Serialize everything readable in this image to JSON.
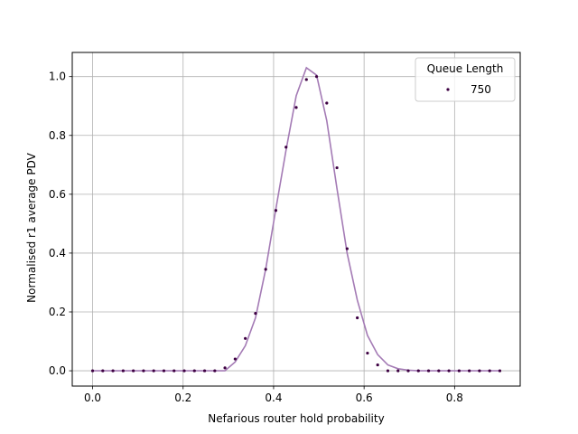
{
  "chart_data": {
    "type": "scatter",
    "xlabel": "Nefarious router hold probability",
    "ylabel": "Normalised r1 average PDV",
    "xlim": [
      -0.045,
      0.945
    ],
    "ylim": [
      -0.052,
      1.082
    ],
    "xticks": [
      0.0,
      0.2,
      0.4,
      0.6,
      0.8
    ],
    "xtick_labels": [
      "0.0",
      "0.2",
      "0.4",
      "0.6",
      "0.8"
    ],
    "yticks": [
      0.0,
      0.2,
      0.4,
      0.6,
      0.8,
      1.0
    ],
    "ytick_labels": [
      "0.0",
      "0.2",
      "0.4",
      "0.6",
      "0.8",
      "1.0"
    ],
    "grid": true,
    "legend": {
      "title": "Queue Length",
      "placement": "top-right"
    },
    "series": [
      {
        "name": "750",
        "color": "#3d0042",
        "marker": "dot",
        "x": [
          0.0,
          0.0225,
          0.045,
          0.0675,
          0.09,
          0.1125,
          0.135,
          0.1575,
          0.18,
          0.2025,
          0.225,
          0.2475,
          0.27,
          0.2925,
          0.315,
          0.3375,
          0.36,
          0.3825,
          0.405,
          0.4275,
          0.45,
          0.4725,
          0.495,
          0.5175,
          0.54,
          0.5625,
          0.585,
          0.6075,
          0.63,
          0.6525,
          0.675,
          0.6975,
          0.72,
          0.7425,
          0.765,
          0.7875,
          0.81,
          0.8325,
          0.855,
          0.8775,
          0.9
        ],
        "y": [
          0.0,
          0.0,
          0.0,
          0.0,
          0.0,
          0.0,
          0.0,
          0.0,
          0.0,
          0.0,
          0.0,
          0.0,
          0.0,
          0.01,
          0.04,
          0.11,
          0.195,
          0.345,
          0.545,
          0.76,
          0.895,
          0.99,
          1.0,
          0.91,
          0.69,
          0.415,
          0.18,
          0.06,
          0.02,
          0.0,
          0.0,
          0.0,
          0.0,
          0.0,
          0.0,
          0.0,
          0.0,
          0.0,
          0.0,
          0.0,
          0.0
        ]
      },
      {
        "color": "#a47bb5",
        "marker": "line",
        "x": [
          0.0,
          0.0225,
          0.045,
          0.0675,
          0.09,
          0.1125,
          0.135,
          0.1575,
          0.18,
          0.2025,
          0.225,
          0.2475,
          0.27,
          0.2925,
          0.315,
          0.3375,
          0.36,
          0.3825,
          0.405,
          0.4275,
          0.45,
          0.4725,
          0.495,
          0.5175,
          0.54,
          0.5625,
          0.585,
          0.6075,
          0.63,
          0.6525,
          0.675,
          0.6975,
          0.72,
          0.7425,
          0.765,
          0.7875,
          0.81,
          0.8325,
          0.855,
          0.8775,
          0.9
        ],
        "y": [
          0.0,
          0.0,
          0.0,
          0.0,
          0.0,
          0.0,
          0.0,
          0.0,
          0.0,
          0.0,
          0.0,
          0.0,
          0.0,
          0.0,
          0.03,
          0.085,
          0.18,
          0.345,
          0.55,
          0.75,
          0.935,
          1.03,
          1.005,
          0.85,
          0.62,
          0.4,
          0.24,
          0.12,
          0.055,
          0.02,
          0.007,
          0.002,
          0.0,
          0.0,
          0.0,
          0.0,
          0.0,
          0.0,
          0.0,
          0.0,
          0.0
        ]
      }
    ]
  }
}
